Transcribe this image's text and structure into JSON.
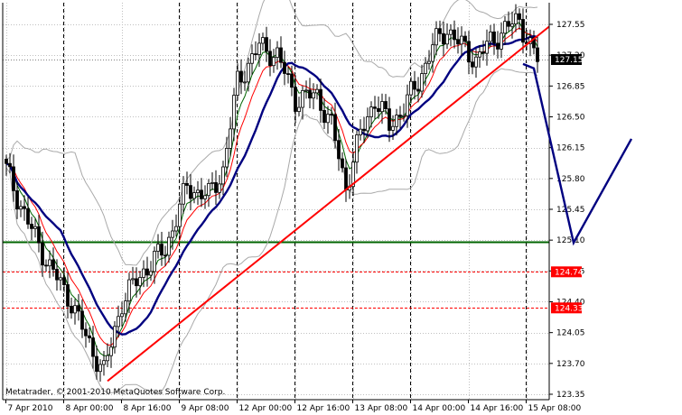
{
  "chart_data": {
    "type": "candlestick",
    "watermark": "Metatrader, © 2001-2010 MetaQuotes Software Corp.",
    "ylim": [
      123.35,
      127.55
    ],
    "y_ticks": [
      "127.55",
      "127.20",
      "126.85",
      "126.50",
      "126.15",
      "125.80",
      "125.45",
      "125.10",
      "124.75",
      "124.40",
      "124.05",
      "123.70",
      "123.35"
    ],
    "x_tick_labels": [
      {
        "label": "7 Apr 2010",
        "bar": 0
      },
      {
        "label": "8 Apr 00:00",
        "bar": 16
      },
      {
        "label": "8 Apr 16:00",
        "bar": 32
      },
      {
        "label": "9 Apr 08:00",
        "bar": 48
      },
      {
        "label": "12 Apr 00:00",
        "bar": 64
      },
      {
        "label": "12 Apr 16:00",
        "bar": 80
      },
      {
        "label": "13 Apr 08:00",
        "bar": 96
      },
      {
        "label": "14 Apr 00:00",
        "bar": 112
      },
      {
        "label": "14 Apr 16:00",
        "bar": 128
      },
      {
        "label": "15 Apr 08:00",
        "bar": 144
      }
    ],
    "price_labels": [
      {
        "text": "127.15",
        "value": 127.15,
        "bg": "#000000",
        "fg": "#ffffff"
      },
      {
        "text": "124.74",
        "value": 124.74,
        "bg": "#ff0000",
        "fg": "#ffffff"
      },
      {
        "text": "124.33",
        "value": 124.33,
        "bg": "#ff0000",
        "fg": "#ffffff"
      }
    ],
    "horizontal_lines": [
      {
        "value": 125.08,
        "color": "#006400",
        "style": "solid"
      },
      {
        "value": 124.74,
        "color": "#ff0000",
        "style": "dashed"
      },
      {
        "value": 124.33,
        "color": "#ff0000",
        "style": "dashed"
      },
      {
        "value": 127.15,
        "color": "#808080",
        "style": "dotted"
      }
    ],
    "trendline": {
      "from": {
        "bar": 28,
        "value": 123.5
      },
      "to": {
        "bar": 151,
        "value": 127.55
      },
      "color": "#ff0000"
    },
    "forecast_path": {
      "points": [
        {
          "bar": 143,
          "value": 127.1
        },
        {
          "bar": 146,
          "value": 127.05
        },
        {
          "bar": 157,
          "value": 125.07
        },
        {
          "bar": 173,
          "value": 126.25
        }
      ],
      "color": "#000080"
    },
    "colors": {
      "grid": "#c0c0c0",
      "ma_slow": "#000080",
      "ma_mid": "#ff0000",
      "ma_fast": "#006400",
      "bands": "#a9a9a9",
      "candle": "#000000"
    }
  }
}
